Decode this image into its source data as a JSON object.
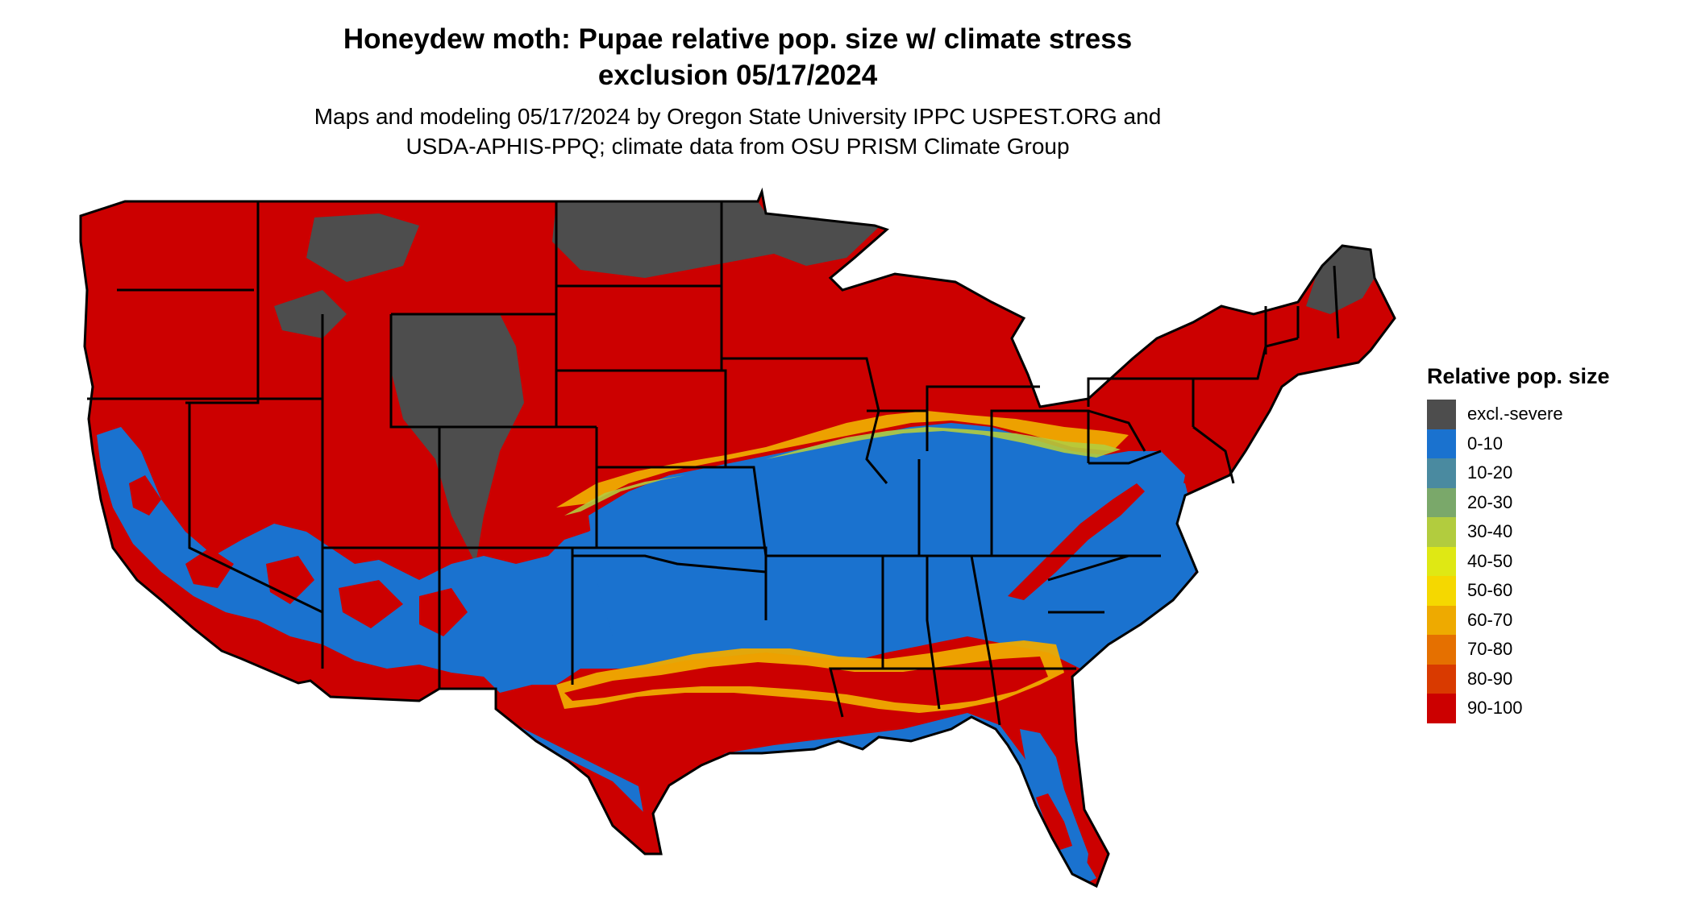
{
  "title": {
    "line1": "Honeydew moth: Pupae relative pop. size w/ climate stress",
    "line2": "exclusion 05/17/2024"
  },
  "subtitle": {
    "line1": "Maps and modeling 05/17/2024 by Oregon State University IPPC USPEST.ORG and",
    "line2": "USDA-APHIS-PPQ; climate data from OSU PRISM Climate Group"
  },
  "legend": {
    "title": "Relative pop. size",
    "items": [
      {
        "label": "excl.-severe",
        "color": "#4d4d4d"
      },
      {
        "label": "0-10",
        "color": "#1a72cf"
      },
      {
        "label": "10-20",
        "color": "#4a8aa0"
      },
      {
        "label": "20-30",
        "color": "#7aa86a"
      },
      {
        "label": "30-40",
        "color": "#b2cc3e"
      },
      {
        "label": "40-50",
        "color": "#dfe814"
      },
      {
        "label": "50-60",
        "color": "#f5d800"
      },
      {
        "label": "60-70",
        "color": "#eeaa00"
      },
      {
        "label": "70-80",
        "color": "#e57000"
      },
      {
        "label": "80-90",
        "color": "#d93a00"
      },
      {
        "label": "90-100",
        "color": "#cc0000"
      }
    ]
  }
}
